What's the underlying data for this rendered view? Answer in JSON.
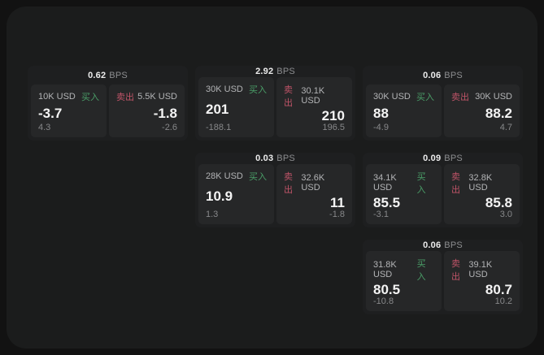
{
  "labels": {
    "buy": "买入",
    "sell": "卖出",
    "bps_unit": "BPS"
  },
  "colors": {
    "page_background": "#121212",
    "panel_background": "#1b1c1c",
    "card_background": "#1e1f20",
    "tile_background": "#262728",
    "buy_accent": "#4a9e68",
    "sell_accent": "#bf5468",
    "primary_text": "#f4f4f4",
    "muted_text": "#87888a"
  },
  "cards": [
    {
      "bps": "0.62",
      "buy": {
        "amount": "10K USD",
        "value": "-3.7",
        "sub": "4.3"
      },
      "sell": {
        "amount": "5.5K USD",
        "value": "-1.8",
        "sub": "-2.6"
      }
    },
    {
      "bps": "2.92",
      "buy": {
        "amount": "30K USD",
        "value": "201",
        "sub": "-188.1"
      },
      "sell": {
        "amount": "30.1K USD",
        "value": "210",
        "sub": "196.5"
      }
    },
    {
      "bps": "0.06",
      "buy": {
        "amount": "30K USD",
        "value": "88",
        "sub": "-4.9"
      },
      "sell": {
        "amount": "30K USD",
        "value": "88.2",
        "sub": "4.7"
      }
    },
    {
      "bps": "0.03",
      "buy": {
        "amount": "28K USD",
        "value": "10.9",
        "sub": "1.3"
      },
      "sell": {
        "amount": "32.6K USD",
        "value": "11",
        "sub": "-1.8"
      }
    },
    {
      "bps": "0.09",
      "buy": {
        "amount": "34.1K USD",
        "value": "85.5",
        "sub": "-3.1"
      },
      "sell": {
        "amount": "32.8K USD",
        "value": "85.8",
        "sub": "3.0"
      }
    },
    {
      "bps": "0.06",
      "buy": {
        "amount": "31.8K USD",
        "value": "80.5",
        "sub": "-10.8"
      },
      "sell": {
        "amount": "39.1K USD",
        "value": "80.7",
        "sub": "10.2"
      }
    }
  ]
}
